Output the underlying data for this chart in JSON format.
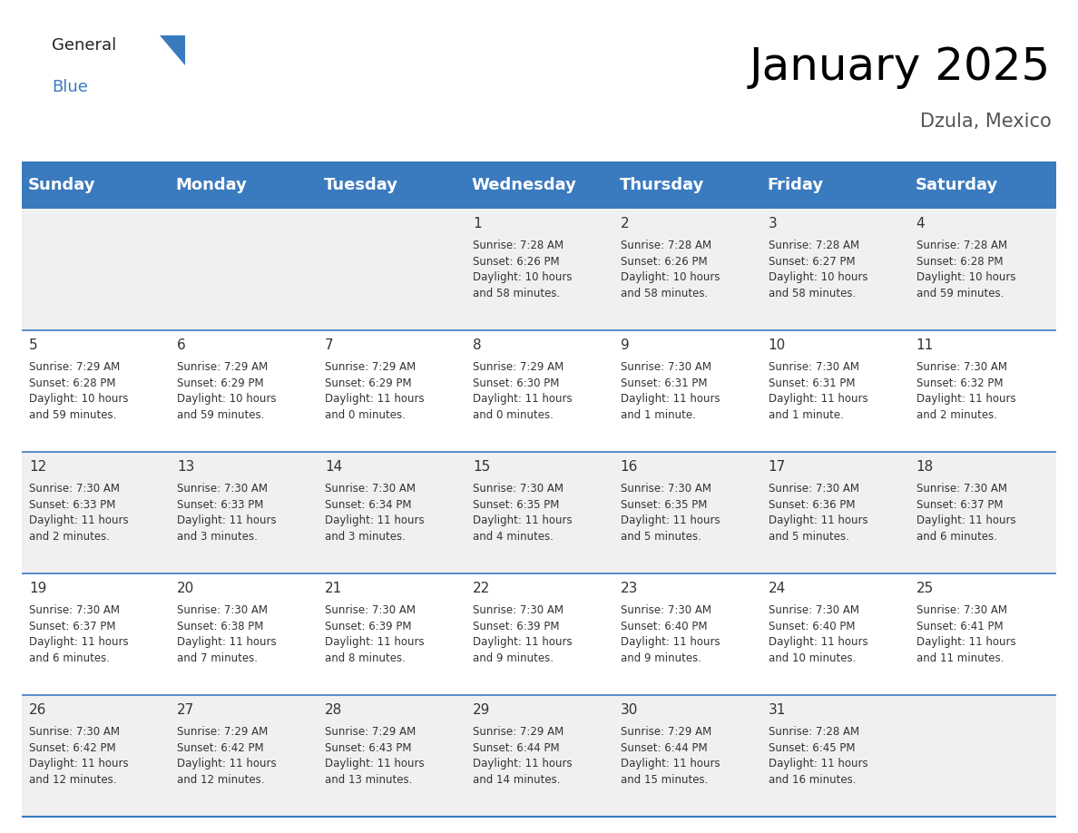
{
  "title": "January 2025",
  "subtitle": "Dzula, Mexico",
  "header_color": "#3a7abf",
  "header_text_color": "#ffffff",
  "cell_bg_even": "#f0f0f0",
  "cell_bg_odd": "#ffffff",
  "day_names": [
    "Sunday",
    "Monday",
    "Tuesday",
    "Wednesday",
    "Thursday",
    "Friday",
    "Saturday"
  ],
  "title_fontsize": 36,
  "subtitle_fontsize": 15,
  "header_fontsize": 13,
  "cell_day_fontsize": 11,
  "cell_info_fontsize": 8.5,
  "days": [
    {
      "day": 1,
      "col": 3,
      "row": 0,
      "sunrise": "7:28 AM",
      "sunset": "6:26 PM",
      "daylight": "10 hours\nand 58 minutes."
    },
    {
      "day": 2,
      "col": 4,
      "row": 0,
      "sunrise": "7:28 AM",
      "sunset": "6:26 PM",
      "daylight": "10 hours\nand 58 minutes."
    },
    {
      "day": 3,
      "col": 5,
      "row": 0,
      "sunrise": "7:28 AM",
      "sunset": "6:27 PM",
      "daylight": "10 hours\nand 58 minutes."
    },
    {
      "day": 4,
      "col": 6,
      "row": 0,
      "sunrise": "7:28 AM",
      "sunset": "6:28 PM",
      "daylight": "10 hours\nand 59 minutes."
    },
    {
      "day": 5,
      "col": 0,
      "row": 1,
      "sunrise": "7:29 AM",
      "sunset": "6:28 PM",
      "daylight": "10 hours\nand 59 minutes."
    },
    {
      "day": 6,
      "col": 1,
      "row": 1,
      "sunrise": "7:29 AM",
      "sunset": "6:29 PM",
      "daylight": "10 hours\nand 59 minutes."
    },
    {
      "day": 7,
      "col": 2,
      "row": 1,
      "sunrise": "7:29 AM",
      "sunset": "6:29 PM",
      "daylight": "11 hours\nand 0 minutes."
    },
    {
      "day": 8,
      "col": 3,
      "row": 1,
      "sunrise": "7:29 AM",
      "sunset": "6:30 PM",
      "daylight": "11 hours\nand 0 minutes."
    },
    {
      "day": 9,
      "col": 4,
      "row": 1,
      "sunrise": "7:30 AM",
      "sunset": "6:31 PM",
      "daylight": "11 hours\nand 1 minute."
    },
    {
      "day": 10,
      "col": 5,
      "row": 1,
      "sunrise": "7:30 AM",
      "sunset": "6:31 PM",
      "daylight": "11 hours\nand 1 minute."
    },
    {
      "day": 11,
      "col": 6,
      "row": 1,
      "sunrise": "7:30 AM",
      "sunset": "6:32 PM",
      "daylight": "11 hours\nand 2 minutes."
    },
    {
      "day": 12,
      "col": 0,
      "row": 2,
      "sunrise": "7:30 AM",
      "sunset": "6:33 PM",
      "daylight": "11 hours\nand 2 minutes."
    },
    {
      "day": 13,
      "col": 1,
      "row": 2,
      "sunrise": "7:30 AM",
      "sunset": "6:33 PM",
      "daylight": "11 hours\nand 3 minutes."
    },
    {
      "day": 14,
      "col": 2,
      "row": 2,
      "sunrise": "7:30 AM",
      "sunset": "6:34 PM",
      "daylight": "11 hours\nand 3 minutes."
    },
    {
      "day": 15,
      "col": 3,
      "row": 2,
      "sunrise": "7:30 AM",
      "sunset": "6:35 PM",
      "daylight": "11 hours\nand 4 minutes."
    },
    {
      "day": 16,
      "col": 4,
      "row": 2,
      "sunrise": "7:30 AM",
      "sunset": "6:35 PM",
      "daylight": "11 hours\nand 5 minutes."
    },
    {
      "day": 17,
      "col": 5,
      "row": 2,
      "sunrise": "7:30 AM",
      "sunset": "6:36 PM",
      "daylight": "11 hours\nand 5 minutes."
    },
    {
      "day": 18,
      "col": 6,
      "row": 2,
      "sunrise": "7:30 AM",
      "sunset": "6:37 PM",
      "daylight": "11 hours\nand 6 minutes."
    },
    {
      "day": 19,
      "col": 0,
      "row": 3,
      "sunrise": "7:30 AM",
      "sunset": "6:37 PM",
      "daylight": "11 hours\nand 6 minutes."
    },
    {
      "day": 20,
      "col": 1,
      "row": 3,
      "sunrise": "7:30 AM",
      "sunset": "6:38 PM",
      "daylight": "11 hours\nand 7 minutes."
    },
    {
      "day": 21,
      "col": 2,
      "row": 3,
      "sunrise": "7:30 AM",
      "sunset": "6:39 PM",
      "daylight": "11 hours\nand 8 minutes."
    },
    {
      "day": 22,
      "col": 3,
      "row": 3,
      "sunrise": "7:30 AM",
      "sunset": "6:39 PM",
      "daylight": "11 hours\nand 9 minutes."
    },
    {
      "day": 23,
      "col": 4,
      "row": 3,
      "sunrise": "7:30 AM",
      "sunset": "6:40 PM",
      "daylight": "11 hours\nand 9 minutes."
    },
    {
      "day": 24,
      "col": 5,
      "row": 3,
      "sunrise": "7:30 AM",
      "sunset": "6:40 PM",
      "daylight": "11 hours\nand 10 minutes."
    },
    {
      "day": 25,
      "col": 6,
      "row": 3,
      "sunrise": "7:30 AM",
      "sunset": "6:41 PM",
      "daylight": "11 hours\nand 11 minutes."
    },
    {
      "day": 26,
      "col": 0,
      "row": 4,
      "sunrise": "7:30 AM",
      "sunset": "6:42 PM",
      "daylight": "11 hours\nand 12 minutes."
    },
    {
      "day": 27,
      "col": 1,
      "row": 4,
      "sunrise": "7:29 AM",
      "sunset": "6:42 PM",
      "daylight": "11 hours\nand 12 minutes."
    },
    {
      "day": 28,
      "col": 2,
      "row": 4,
      "sunrise": "7:29 AM",
      "sunset": "6:43 PM",
      "daylight": "11 hours\nand 13 minutes."
    },
    {
      "day": 29,
      "col": 3,
      "row": 4,
      "sunrise": "7:29 AM",
      "sunset": "6:44 PM",
      "daylight": "11 hours\nand 14 minutes."
    },
    {
      "day": 30,
      "col": 4,
      "row": 4,
      "sunrise": "7:29 AM",
      "sunset": "6:44 PM",
      "daylight": "11 hours\nand 15 minutes."
    },
    {
      "day": 31,
      "col": 5,
      "row": 4,
      "sunrise": "7:28 AM",
      "sunset": "6:45 PM",
      "daylight": "11 hours\nand 16 minutes."
    }
  ],
  "num_rows": 5,
  "num_cols": 7,
  "line_color": "#3a7abf",
  "text_color": "#333333",
  "logo_general_color": "#222222",
  "logo_blue_color": "#3a7abf",
  "logo_triangle_color": "#3a7abf"
}
